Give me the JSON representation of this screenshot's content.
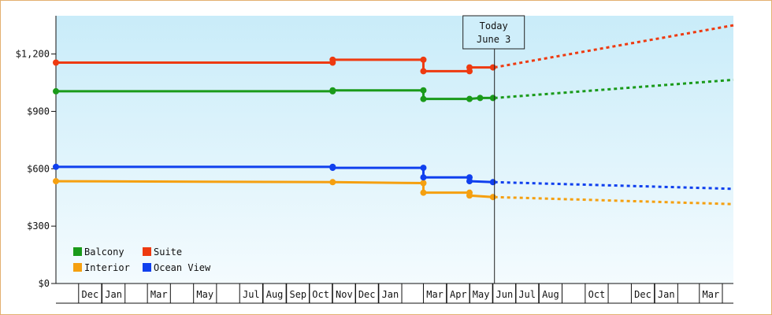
{
  "chart_data": {
    "type": "line",
    "title": "",
    "xlabel": "",
    "ylabel": "",
    "ylim": [
      0,
      1400
    ],
    "y_ticks": [
      0,
      300,
      600,
      900,
      1200
    ],
    "y_tick_labels": [
      "$0",
      "$300",
      "$600",
      "$900",
      "$1,200"
    ],
    "x_tick_labels": [
      {
        "date": "2023-12-01",
        "label": "Dec"
      },
      {
        "date": "2024-01-01",
        "label": "Jan"
      },
      {
        "date": "2024-03-01",
        "label": "Mar"
      },
      {
        "date": "2024-05-01",
        "label": "May"
      },
      {
        "date": "2024-07-01",
        "label": "Jul"
      },
      {
        "date": "2024-08-01",
        "label": "Aug"
      },
      {
        "date": "2024-09-01",
        "label": "Sep"
      },
      {
        "date": "2024-10-01",
        "label": "Oct"
      },
      {
        "date": "2024-11-01",
        "label": "Nov"
      },
      {
        "date": "2024-12-01",
        "label": "Dec"
      },
      {
        "date": "2025-01-01",
        "label": "Jan"
      },
      {
        "date": "2025-03-01",
        "label": "Mar"
      },
      {
        "date": "2025-04-01",
        "label": "Apr"
      },
      {
        "date": "2025-05-01",
        "label": "May"
      },
      {
        "date": "2025-06-01",
        "label": "Jun"
      },
      {
        "date": "2025-07-01",
        "label": "Jul"
      },
      {
        "date": "2025-08-01",
        "label": "Aug"
      },
      {
        "date": "2025-10-01",
        "label": "Oct"
      },
      {
        "date": "2025-12-01",
        "label": "Dec"
      },
      {
        "date": "2026-01-01",
        "label": "Jan"
      },
      {
        "date": "2026-03-01",
        "label": "Mar"
      }
    ],
    "x_range": [
      "2023-11-01",
      "2026-04-15"
    ],
    "today": {
      "date": "2025-06-03",
      "label_line1": "Today",
      "label_line2": "June 3"
    },
    "grid": false,
    "legend_position": "bottom-left",
    "series": [
      {
        "name": "Balcony",
        "color": "#1a9a1a",
        "points": [
          [
            "2023-11-01",
            1005
          ],
          [
            "2024-11-01",
            1005
          ],
          [
            "2024-11-01",
            1010
          ],
          [
            "2025-03-01",
            1010
          ],
          [
            "2025-03-01",
            965
          ],
          [
            "2025-05-01",
            965
          ],
          [
            "2025-05-15",
            970
          ],
          [
            "2025-06-01",
            970
          ]
        ],
        "forecast": [
          [
            "2025-06-03",
            970
          ],
          [
            "2026-04-15",
            1065
          ]
        ]
      },
      {
        "name": "Suite",
        "color": "#ee3a10",
        "points": [
          [
            "2023-11-01",
            1155
          ],
          [
            "2024-11-01",
            1155
          ],
          [
            "2024-11-01",
            1170
          ],
          [
            "2025-03-01",
            1170
          ],
          [
            "2025-03-01",
            1110
          ],
          [
            "2025-05-01",
            1110
          ],
          [
            "2025-05-01",
            1130
          ],
          [
            "2025-06-01",
            1130
          ]
        ],
        "forecast": [
          [
            "2025-06-03",
            1130
          ],
          [
            "2026-04-15",
            1350
          ]
        ]
      },
      {
        "name": "Interior",
        "color": "#f5a010",
        "points": [
          [
            "2023-11-01",
            535
          ],
          [
            "2024-11-01",
            530
          ],
          [
            "2025-03-01",
            525
          ],
          [
            "2025-03-01",
            475
          ],
          [
            "2025-05-01",
            475
          ],
          [
            "2025-05-01",
            460
          ],
          [
            "2025-06-01",
            452
          ]
        ],
        "forecast": [
          [
            "2025-06-03",
            452
          ],
          [
            "2026-04-15",
            415
          ]
        ]
      },
      {
        "name": "Ocean View",
        "color": "#1040ee",
        "points": [
          [
            "2023-11-01",
            610
          ],
          [
            "2024-11-01",
            610
          ],
          [
            "2024-11-01",
            605
          ],
          [
            "2025-03-01",
            605
          ],
          [
            "2025-03-01",
            555
          ],
          [
            "2025-05-01",
            555
          ],
          [
            "2025-05-01",
            535
          ],
          [
            "2025-06-01",
            530
          ]
        ],
        "forecast": [
          [
            "2025-06-03",
            530
          ],
          [
            "2026-04-15",
            495
          ]
        ]
      }
    ],
    "legend": [
      {
        "name": "Balcony",
        "color": "#1a9a1a"
      },
      {
        "name": "Suite",
        "color": "#ee3a10"
      },
      {
        "name": "Interior",
        "color": "#f5a010"
      },
      {
        "name": "Ocean View",
        "color": "#1040ee"
      }
    ]
  }
}
